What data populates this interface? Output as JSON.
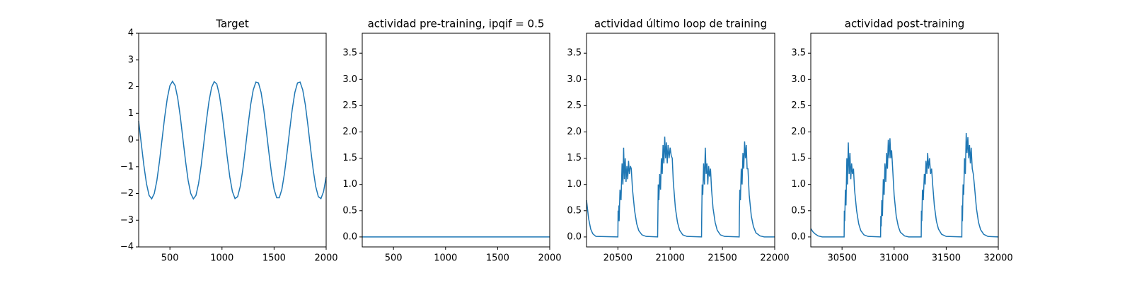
{
  "chart_data": [
    {
      "type": "line",
      "title": "Target",
      "color": "#1f77b4",
      "xlim": [
        200,
        2000
      ],
      "xticks": [
        500,
        1000,
        1500,
        2000
      ],
      "ylim": [
        -4,
        4
      ],
      "yticks": [
        {
          "value": -4,
          "label": "−4"
        },
        {
          "value": -3,
          "label": "−3"
        },
        {
          "value": -2,
          "label": "−2"
        },
        {
          "value": -1,
          "label": "−1"
        },
        0,
        1,
        2,
        3,
        4
      ],
      "x": [
        200,
        225,
        250,
        275,
        300,
        325,
        350,
        375,
        400,
        425,
        450,
        475,
        500,
        525,
        550,
        575,
        600,
        625,
        650,
        675,
        700,
        725,
        750,
        775,
        800,
        825,
        850,
        875,
        900,
        925,
        950,
        975,
        1000,
        1025,
        1050,
        1075,
        1100,
        1125,
        1150,
        1175,
        1200,
        1225,
        1250,
        1275,
        1300,
        1325,
        1350,
        1375,
        1400,
        1425,
        1450,
        1475,
        1500,
        1525,
        1550,
        1575,
        1600,
        1625,
        1650,
        1675,
        1700,
        1725,
        1750,
        1775,
        1800,
        1825,
        1850,
        1875,
        1900,
        1925,
        1950,
        1975,
        2000
      ],
      "values": [
        0.71,
        -0.13,
        -0.95,
        -1.63,
        -2.07,
        -2.2,
        -2.0,
        -1.51,
        -0.79,
        0.04,
        0.87,
        1.57,
        2.04,
        2.2,
        2.04,
        1.57,
        0.87,
        0.04,
        -0.79,
        -1.51,
        -2.0,
        -2.2,
        -2.07,
        -1.63,
        -0.95,
        -0.13,
        0.71,
        1.45,
        1.97,
        2.19,
        2.1,
        1.69,
        1.03,
        0.22,
        -0.63,
        -1.38,
        -1.93,
        -2.19,
        -2.12,
        -1.74,
        -1.1,
        -0.3,
        0.55,
        1.32,
        1.88,
        2.17,
        2.14,
        1.79,
        1.17,
        0.38,
        -0.46,
        -1.24,
        -1.84,
        -2.16,
        -2.16,
        -1.84,
        -1.24,
        -0.46,
        0.38,
        1.17,
        1.79,
        2.14,
        2.17,
        1.88,
        1.32,
        0.55,
        -0.3,
        -1.1,
        -1.74,
        -2.12,
        -2.19,
        -1.93,
        -1.38
      ]
    },
    {
      "type": "line",
      "title": "actividad pre-training, ipqif = 0.5",
      "color": "#1f77b4",
      "xlim": [
        200,
        2000
      ],
      "xticks": [
        500,
        1000,
        1500,
        2000
      ],
      "ylim": [
        -0.19,
        3.88
      ],
      "yticks": [
        {
          "value": 0,
          "label": "0.0"
        },
        0.5,
        {
          "value": 1,
          "label": "1.0"
        },
        1.5,
        {
          "value": 2,
          "label": "2.0"
        },
        2.5,
        {
          "value": 3,
          "label": "3.0"
        },
        3.5
      ],
      "x": [
        200,
        2000
      ],
      "values": [
        0,
        0
      ]
    },
    {
      "type": "line",
      "title": "actividad último loop de training",
      "color": "#1f77b4",
      "xlim": [
        20200,
        22000
      ],
      "xticks": [
        20500,
        21000,
        21500,
        22000
      ],
      "ylim": [
        -0.19,
        3.88
      ],
      "yticks": [
        {
          "value": 0,
          "label": "0.0"
        },
        0.5,
        {
          "value": 1,
          "label": "1.0"
        },
        1.5,
        {
          "value": 2,
          "label": "2.0"
        },
        2.5,
        {
          "value": 3,
          "label": "3.0"
        },
        3.5
      ],
      "x": [
        20200,
        20220,
        20240,
        20260,
        20290,
        20500,
        20502,
        20504,
        20510,
        20512,
        20520,
        20530,
        20540,
        20548,
        20555,
        20562,
        20570,
        20578,
        20586,
        20594,
        20602,
        20610,
        20620,
        20628,
        20640,
        20660,
        20680,
        20700,
        20730,
        20770,
        20880,
        20882,
        20886,
        20892,
        20900,
        20908,
        20916,
        20924,
        20932,
        20940,
        20948,
        20956,
        20964,
        20972,
        20980,
        20990,
        21000,
        21010,
        21020,
        21030,
        21050,
        21070,
        21090,
        21120,
        21160,
        21300,
        21302,
        21306,
        21312,
        21320,
        21328,
        21336,
        21344,
        21352,
        21360,
        21368,
        21376,
        21386,
        21396,
        21410,
        21430,
        21450,
        21480,
        21520,
        21660,
        21662,
        21666,
        21672,
        21680,
        21688,
        21696,
        21704,
        21712,
        21720,
        21728,
        21736,
        21744,
        21756,
        21776,
        21796,
        21820,
        21860,
        21900,
        22000
      ],
      "values": [
        0.7,
        0.35,
        0.15,
        0.06,
        0.01,
        0,
        0.5,
        0.3,
        0.6,
        0.3,
        0.9,
        0.7,
        1.4,
        1.0,
        1.7,
        1.1,
        1.5,
        1.05,
        1.35,
        1.1,
        1.45,
        1.2,
        1.35,
        1.3,
        0.9,
        0.5,
        0.25,
        0.12,
        0.04,
        0.01,
        0,
        0.3,
        1.0,
        0.7,
        1.2,
        0.9,
        1.5,
        1.2,
        1.75,
        1.4,
        1.91,
        1.5,
        1.8,
        1.4,
        1.75,
        1.5,
        1.7,
        1.55,
        1.5,
        1.05,
        0.55,
        0.28,
        0.13,
        0.04,
        0.01,
        0,
        0.4,
        1.0,
        0.8,
        1.4,
        1.0,
        1.7,
        1.2,
        1.4,
        1.0,
        1.35,
        1.15,
        1.3,
        0.9,
        0.55,
        0.28,
        0.13,
        0.04,
        0.01,
        0,
        0.4,
        0.9,
        0.7,
        1.3,
        1.0,
        1.6,
        1.3,
        1.82,
        1.5,
        1.75,
        1.3,
        1.3,
        0.8,
        0.4,
        0.2,
        0.08,
        0.02,
        0,
        0
      ]
    },
    {
      "type": "line",
      "title": "actividad post-training",
      "color": "#1f77b4",
      "xlim": [
        30200,
        32000
      ],
      "xticks": [
        30500,
        31000,
        31500,
        32000
      ],
      "ylim": [
        -0.19,
        3.88
      ],
      "yticks": [
        {
          "value": 0,
          "label": "0.0"
        },
        0.5,
        {
          "value": 1,
          "label": "1.0"
        },
        1.5,
        {
          "value": 2,
          "label": "2.0"
        },
        2.5,
        {
          "value": 3,
          "label": "3.0"
        },
        3.5
      ],
      "x": [
        30200,
        30220,
        30240,
        30270,
        30310,
        30520,
        30522,
        30526,
        30532,
        30538,
        30546,
        30552,
        30560,
        30568,
        30576,
        30584,
        30592,
        30600,
        30610,
        30620,
        30640,
        30660,
        30680,
        30710,
        30750,
        30870,
        30872,
        30876,
        30882,
        30888,
        30896,
        30904,
        30912,
        30920,
        30928,
        30936,
        30944,
        30952,
        30960,
        30968,
        30976,
        30986,
        31000,
        31020,
        31040,
        31060,
        31100,
        31140,
        31260,
        31262,
        31266,
        31272,
        31280,
        31290,
        31298,
        31306,
        31314,
        31322,
        31330,
        31340,
        31350,
        31360,
        31370,
        31386,
        31406,
        31426,
        31456,
        31500,
        31650,
        31652,
        31656,
        31662,
        31668,
        31676,
        31684,
        31692,
        31700,
        31708,
        31716,
        31724,
        31732,
        31740,
        31750,
        31760,
        31770,
        31790,
        31810,
        31830,
        31860,
        31900,
        32000
      ],
      "values": [
        0.16,
        0.1,
        0.06,
        0.02,
        0,
        0,
        0.5,
        0.3,
        0.9,
        0.6,
        1.5,
        1.0,
        1.8,
        1.2,
        1.6,
        1.1,
        1.4,
        1.2,
        1.3,
        0.9,
        0.5,
        0.25,
        0.12,
        0.04,
        0.01,
        0,
        0.4,
        0.2,
        0.7,
        0.4,
        1.1,
        0.8,
        1.4,
        1.05,
        1.6,
        1.3,
        1.85,
        1.5,
        1.88,
        1.5,
        1.65,
        1.3,
        0.8,
        0.4,
        0.2,
        0.09,
        0.02,
        0,
        0,
        0.5,
        0.3,
        0.9,
        0.7,
        1.2,
        1.0,
        1.45,
        1.2,
        1.6,
        1.3,
        1.5,
        1.2,
        1.3,
        1.0,
        0.6,
        0.3,
        0.15,
        0.05,
        0.01,
        0,
        0.6,
        0.3,
        1.0,
        0.8,
        1.5,
        1.2,
        1.98,
        1.6,
        1.9,
        1.5,
        1.75,
        1.4,
        1.7,
        1.3,
        1.2,
        1.0,
        0.55,
        0.28,
        0.14,
        0.05,
        0.01,
        0
      ]
    }
  ]
}
